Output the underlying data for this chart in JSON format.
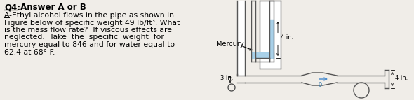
{
  "background_color": "#f0ede8",
  "text_color": "#000000",
  "pipe_color": "#555555",
  "fluid_color": "#a8d0e8",
  "mercury_label": "Mercury",
  "label_4in_top": "4 in.",
  "label_4in_right": "4 in.",
  "label_3in": "3 in.",
  "title_q4": "Q4:",
  "title_rest": " Answer A or B",
  "line1": "A-Ethyl alcohol flows in the pipe as shown in",
  "line2": "Figure below of specific weight 49 lb/ft³. What",
  "line3": "is the mass flow rate?  If viscous effects are",
  "line4": "neglected.  Take  the  specific  weight  for",
  "line5": "mercury equal to 846 and for water equal to",
  "line6": "62.4 at 68° F."
}
